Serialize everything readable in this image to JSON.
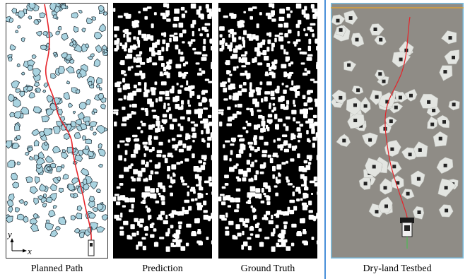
{
  "captions": {
    "planned_path": "Planned Path",
    "prediction": "Prediction",
    "ground_truth": "Ground Truth",
    "testbed": "Dry-land Testbed"
  },
  "axes": {
    "x": "x",
    "y": "y"
  },
  "colors": {
    "rock_fill": "#a9d3e0",
    "rock_stroke": "#1b2a33",
    "path": "#e6242a",
    "mask_bg": "#000000",
    "mask_rock": "#ffffff",
    "testbed_bg": "#8f8c86",
    "testbed_rock": "#e3e5e1",
    "testbed_frame": "#79bde0",
    "divider": "#4a90d9"
  }
}
